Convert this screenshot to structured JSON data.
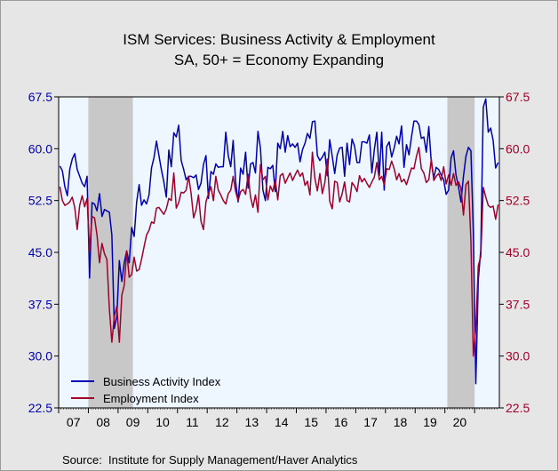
{
  "chart_data": {
    "type": "line",
    "title": "ISM Services: Business Activity & Employment",
    "subtitle": "SA, 50+ = Economy Expanding",
    "source_label": "Source:",
    "source_text": "Institute for Supply Management/Haver Analytics",
    "x_ticks": [
      "07",
      "08",
      "09",
      "10",
      "11",
      "12",
      "13",
      "14",
      "15",
      "16",
      "17",
      "18",
      "19",
      "20"
    ],
    "y_ticks": [
      "22.5",
      "30.0",
      "37.5",
      "45.0",
      "52.5",
      "60.0",
      "67.5"
    ],
    "ylim": [
      22.5,
      67.5
    ],
    "x_start": "2007-01",
    "recessions": [
      [
        "2008-01",
        "2009-06"
      ],
      [
        "2020-02",
        "2020-12"
      ]
    ],
    "legend_position": "bottom-left",
    "colors": {
      "business": "#0000B3",
      "employment": "#A0002A",
      "plot_bg": "#EEF6FF",
      "recession": "#C8C8C8",
      "left_axis": "#0000B3",
      "right_axis": "#A0002A"
    },
    "series": [
      {
        "name": "Business Activity Index",
        "key": "business",
        "values": [
          57.5,
          56.8,
          54.5,
          53.2,
          57.0,
          58.5,
          59.3,
          57.0,
          56.0,
          55.0,
          54.5,
          56.0,
          41.3,
          52.2,
          52.0,
          51.0,
          53.5,
          50.2,
          51.2,
          51.0,
          50.8,
          47.5,
          34.0,
          35.8,
          43.8,
          40.8,
          43.5,
          45.2,
          43.5,
          48.6,
          47.3,
          52.3,
          54.8,
          51.8,
          52.6,
          52.0,
          53.3,
          57.2,
          58.7,
          61.1,
          59.0,
          57.0,
          55.2,
          53.0,
          59.8,
          57.4,
          62.3,
          61.7,
          63.4,
          58.3,
          57.0,
          55.5,
          56.0,
          56.0,
          55.8,
          56.2,
          54.1,
          55.0,
          57.7,
          59.0,
          52.8,
          56.7,
          56.3,
          57.8,
          57.3,
          57.4,
          57.4,
          62.4,
          59.0,
          57.4,
          61.2,
          55.2,
          52.3,
          57.2,
          56.3,
          59.5,
          54.3,
          57.8,
          58.0,
          56.5,
          62.5,
          60.1,
          54.0,
          52.5,
          57.3,
          57.1,
          57.6,
          53.8,
          60.8,
          60.0,
          62.5,
          59.5,
          61.9,
          60.3,
          60.7,
          60.2,
          60.8,
          58.1,
          59.9,
          60.8,
          62.2,
          61.5,
          63.9,
          64.0,
          59.0,
          58.3,
          58.8,
          59.5,
          56.1,
          61.3,
          58.9,
          56.4,
          59.1,
          60.1,
          60.2,
          56.0,
          60.8,
          57.7,
          61.4,
          60.4,
          58.0,
          58.0,
          61.0,
          61.0,
          60.8,
          62.0,
          56.5,
          59.9,
          62.4,
          56.1,
          62.4,
          54.0,
          60.3,
          61.0,
          58.8,
          60.1,
          61.8,
          60.7,
          63.3,
          57.3,
          60.6,
          59.1,
          61.7,
          64.0,
          64.0,
          63.5,
          61.5,
          61.7,
          59.5,
          63.2,
          58.0,
          55.8,
          57.3,
          57.0,
          56.2,
          55.5,
          53.4,
          54.0,
          58.7,
          59.7,
          56.2,
          54.5,
          52.3,
          56.0,
          58.9,
          60.2,
          59.7,
          48.0,
          26.0,
          41.0,
          45.4,
          66.0,
          67.2,
          62.4,
          63.0,
          61.2,
          57.2,
          58.0
        ]
      },
      {
        "name": "Employment Index",
        "key": "employment",
        "values": [
          54.5,
          52.5,
          51.8,
          52.0,
          52.3,
          53.0,
          51.5,
          48.3,
          51.8,
          53.2,
          51.6,
          52.8,
          45.2,
          50.2,
          50.0,
          47.5,
          43.5,
          46.3,
          44.8,
          44.0,
          36.8,
          32.0,
          35.8,
          37.2,
          32.0,
          38.8,
          40.2,
          45.2,
          41.4,
          41.8,
          44.3,
          42.3,
          42.5,
          44.0,
          45.8,
          47.5,
          48.2,
          49.4,
          49.2,
          51.4,
          51.5,
          51.0,
          50.5,
          51.3,
          52.8,
          52.5,
          56.5,
          51.4,
          52.2,
          53.7,
          53.6,
          54.0,
          56.0,
          53.5,
          50.0,
          51.2,
          53.3,
          49.5,
          48.3,
          52.3,
          53.5,
          54.5,
          52.5,
          56.0,
          54.0,
          53.3,
          52.5,
          52.0,
          53.5,
          54.0,
          56.0,
          53.8,
          52.5,
          53.8,
          54.1,
          53.4,
          56.3,
          53.0,
          51.5,
          53.3,
          50.8,
          57.7,
          55.5,
          56.0,
          52.6,
          54.6,
          53.8,
          55.5,
          52.6,
          56.1,
          56.4,
          55.0,
          55.8,
          56.5,
          55.4,
          56.2,
          56.9,
          56.0,
          56.5,
          54.7,
          55.3,
          53.3,
          59.5,
          55.7,
          53.9,
          56.4,
          53.5,
          55.1,
          58.5,
          52.4,
          51.3,
          55.3,
          55.1,
          52.3,
          53.5,
          55.2,
          52.5,
          52.3,
          55.1,
          54.6,
          53.8,
          56.1,
          55.2,
          55.7,
          55.0,
          54.4,
          55.2,
          55.9,
          58.0,
          55.5,
          56.0,
          54.8,
          57.1,
          57.0,
          58.2,
          57.1,
          55.5,
          56.4,
          55.2,
          55.6,
          54.8,
          56.0,
          57.2,
          57.1,
          58.9,
          60.2,
          57.1,
          56.5,
          55.1,
          55.5,
          58.5,
          55.4,
          56.0,
          56.4,
          55.4,
          57.4,
          54.9,
          56.2,
          54.7,
          56.4,
          54.7,
          55.2,
          54.3,
          50.4,
          54.8,
          55.3,
          46.6,
          30.0,
          34.0,
          43.1,
          44.4,
          54.4,
          53.0,
          51.8,
          51.5,
          51.7,
          49.8,
          51.9
        ]
      }
    ]
  }
}
